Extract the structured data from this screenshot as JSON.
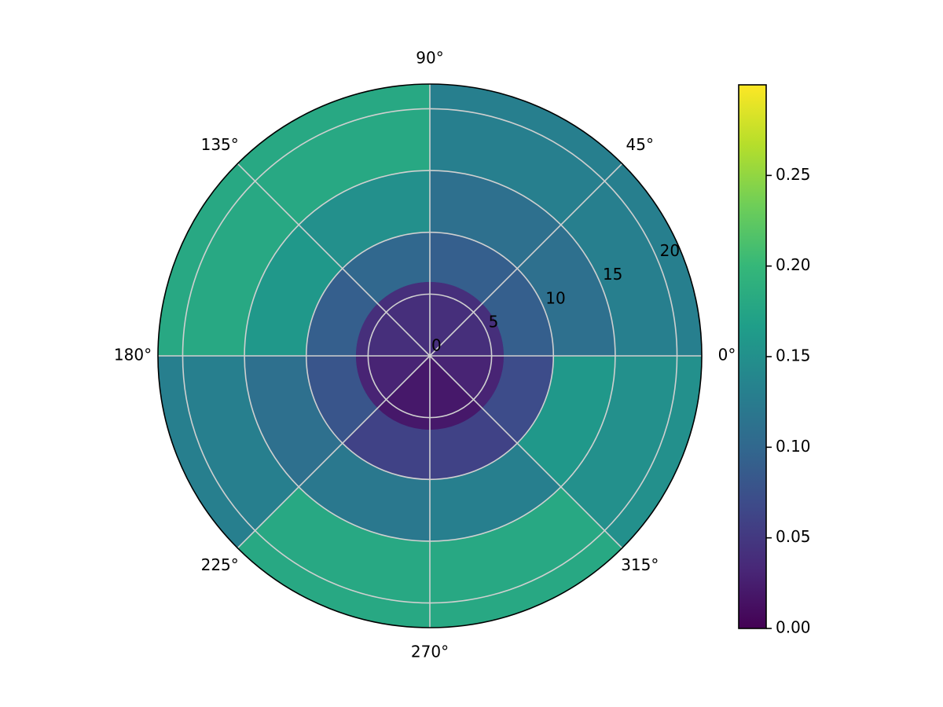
{
  "chart_data": {
    "type": "polar_heatmap",
    "colormap": "viridis",
    "theta_bins": [
      0,
      45,
      90,
      135,
      180,
      225,
      270,
      315,
      360
    ],
    "r_bins": [
      0,
      6,
      10,
      15,
      22
    ],
    "values": [
      [
        0.04,
        0.04,
        0.04,
        0.04,
        0.03,
        0.02,
        0.02,
        0.03
      ],
      [
        0.09,
        0.09,
        0.1,
        0.09,
        0.08,
        0.06,
        0.06,
        0.07
      ],
      [
        0.11,
        0.11,
        0.15,
        0.16,
        0.11,
        0.12,
        0.13,
        0.16
      ],
      [
        0.13,
        0.13,
        0.18,
        0.18,
        0.13,
        0.18,
        0.18,
        0.15
      ]
    ],
    "rlim": [
      0,
      22
    ],
    "rticks": [
      0,
      5,
      10,
      15,
      20
    ],
    "thetaticks": [
      {
        "value": 0,
        "label": "0°"
      },
      {
        "value": 45,
        "label": "45°"
      },
      {
        "value": 90,
        "label": "90°"
      },
      {
        "value": 135,
        "label": "135°"
      },
      {
        "value": 180,
        "label": "180°"
      },
      {
        "value": 225,
        "label": "225°"
      },
      {
        "value": 270,
        "label": "270°"
      },
      {
        "value": 315,
        "label": "315°"
      }
    ],
    "clim": [
      0,
      0.3
    ],
    "cticks": [
      {
        "value": 0,
        "label": "0.00"
      },
      {
        "value": 0.05,
        "label": "0.05"
      },
      {
        "value": 0.1,
        "label": "0.10"
      },
      {
        "value": 0.15,
        "label": "0.15"
      },
      {
        "value": 0.2,
        "label": "0.20"
      },
      {
        "value": 0.25,
        "label": "0.25"
      }
    ],
    "grid": true
  }
}
